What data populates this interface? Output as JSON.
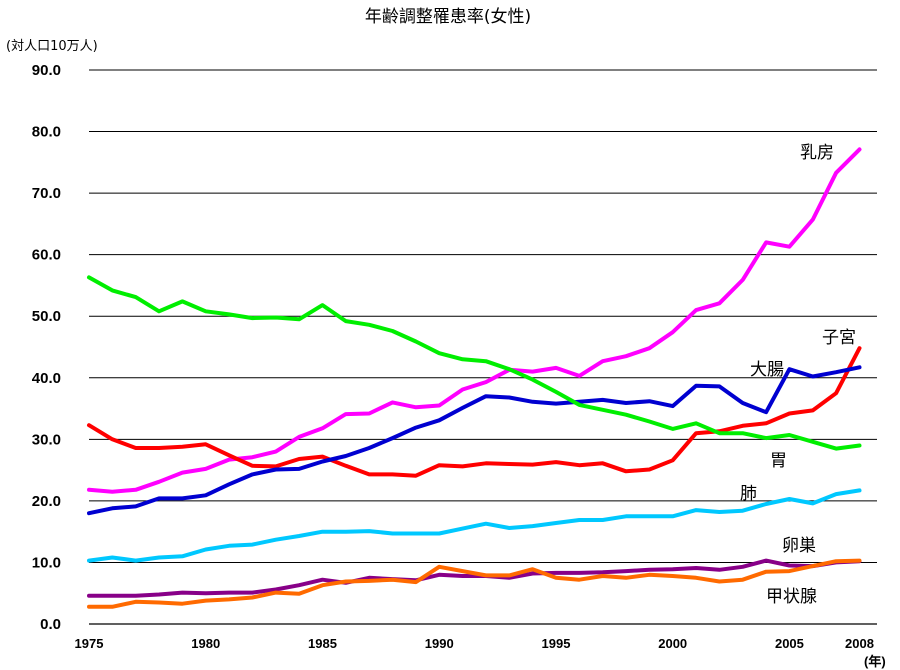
{
  "chart_data": {
    "type": "line",
    "title": "年齢調整罹患率(女性)",
    "unit": "(対人口10万人)",
    "x_unit": "(年)",
    "xlim": [
      1975,
      2008
    ],
    "ylim": [
      0,
      90
    ],
    "y_ticks": [
      "0.0",
      "10.0",
      "20.0",
      "30.0",
      "40.0",
      "50.0",
      "60.0",
      "70.0",
      "80.0",
      "90.0"
    ],
    "x_ticks": [
      "1975",
      "1980",
      "1985",
      "1990",
      "1995",
      "2000",
      "2005",
      "2008"
    ],
    "grid": true,
    "x": [
      1975,
      1976,
      1977,
      1978,
      1979,
      1980,
      1981,
      1982,
      1983,
      1984,
      1985,
      1986,
      1987,
      1988,
      1989,
      1990,
      1991,
      1992,
      1993,
      1994,
      1995,
      1996,
      1997,
      1998,
      1999,
      2000,
      2001,
      2002,
      2003,
      2004,
      2005,
      2006,
      2007,
      2008
    ],
    "series": [
      {
        "name": "乳房",
        "color": "#ff00ff",
        "values": [
          21.8,
          21.5,
          21.8,
          23.1,
          24.6,
          25.2,
          26.7,
          27.1,
          28.0,
          30.4,
          31.8,
          34.1,
          34.2,
          36.0,
          35.2,
          35.5,
          38.1,
          39.3,
          41.3,
          41.0,
          41.6,
          40.3,
          42.7,
          43.5,
          44.8,
          47.4,
          51.0,
          52.1,
          55.9,
          62.0,
          61.3,
          65.7,
          73.3,
          77.1
        ]
      },
      {
        "name": "子宮",
        "color": "#ff0000",
        "values": [
          32.3,
          30.0,
          28.6,
          28.6,
          28.8,
          29.2,
          27.4,
          25.7,
          25.6,
          26.8,
          27.2,
          25.7,
          24.3,
          24.3,
          24.1,
          25.8,
          25.6,
          26.1,
          26.0,
          25.9,
          26.3,
          25.8,
          26.1,
          24.8,
          25.1,
          26.6,
          31.0,
          31.3,
          32.2,
          32.6,
          34.2,
          34.7,
          37.5,
          44.8
        ]
      },
      {
        "name": "大腸",
        "color": "#0000d0",
        "values": [
          18.0,
          18.8,
          19.1,
          20.4,
          20.4,
          20.9,
          22.7,
          24.3,
          25.1,
          25.2,
          26.4,
          27.3,
          28.6,
          30.2,
          31.9,
          33.1,
          35.1,
          37.0,
          36.8,
          36.1,
          35.8,
          36.1,
          36.4,
          35.9,
          36.2,
          35.4,
          38.7,
          38.6,
          35.9,
          34.4,
          41.4,
          40.2,
          40.9,
          41.7
        ]
      },
      {
        "name": "胃",
        "color": "#00ee00",
        "values": [
          56.3,
          54.2,
          53.1,
          50.8,
          52.4,
          50.8,
          50.3,
          49.7,
          49.8,
          49.5,
          51.8,
          49.2,
          48.6,
          47.6,
          45.9,
          44.0,
          43.0,
          42.7,
          41.4,
          39.7,
          37.7,
          35.6,
          34.8,
          34.0,
          32.9,
          31.7,
          32.6,
          31.0,
          31.0,
          30.2,
          30.7,
          29.6,
          28.5,
          29.0
        ]
      },
      {
        "name": "肺",
        "color": "#00c8ff",
        "values": [
          10.3,
          10.8,
          10.3,
          10.8,
          11.0,
          12.1,
          12.7,
          12.9,
          13.7,
          14.3,
          15.0,
          15.0,
          15.1,
          14.7,
          14.7,
          14.7,
          15.5,
          16.3,
          15.6,
          15.9,
          16.4,
          16.9,
          16.9,
          17.5,
          17.5,
          17.5,
          18.5,
          18.2,
          18.4,
          19.5,
          20.3,
          19.6,
          21.1,
          21.7
        ]
      },
      {
        "name": "卵巣",
        "color": "#880088",
        "values": [
          4.6,
          4.6,
          4.6,
          4.8,
          5.1,
          5.0,
          5.1,
          5.1,
          5.6,
          6.3,
          7.2,
          6.7,
          7.5,
          7.3,
          7.1,
          8.0,
          7.8,
          7.8,
          7.5,
          8.2,
          8.3,
          8.3,
          8.4,
          8.6,
          8.8,
          8.9,
          9.1,
          8.8,
          9.3,
          10.3,
          9.5,
          9.4,
          10.0,
          10.2
        ]
      },
      {
        "name": "甲状腺",
        "color": "#ff6a00",
        "values": [
          2.8,
          2.8,
          3.6,
          3.5,
          3.3,
          3.8,
          4.0,
          4.3,
          5.1,
          4.9,
          6.3,
          6.9,
          7.0,
          7.2,
          6.8,
          9.3,
          8.6,
          7.9,
          7.9,
          8.9,
          7.5,
          7.2,
          7.8,
          7.5,
          8.0,
          7.8,
          7.5,
          6.9,
          7.2,
          8.5,
          8.6,
          9.4,
          10.2,
          10.3
        ]
      }
    ]
  }
}
